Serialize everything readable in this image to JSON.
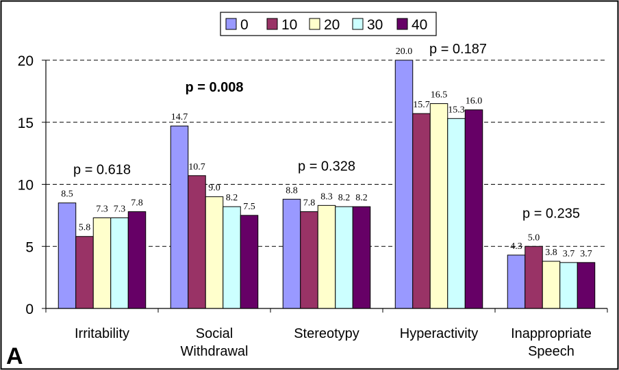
{
  "chart_data": {
    "type": "bar",
    "categories": [
      [
        "Irritability"
      ],
      [
        "Social",
        "Withdrawal"
      ],
      [
        "Stereotypy"
      ],
      [
        "Hyperactivity"
      ],
      [
        "Inappropriate",
        "Speech"
      ]
    ],
    "series": [
      {
        "name": "0",
        "color": "#9999ff",
        "values": [
          8.5,
          14.7,
          8.8,
          20.0,
          4.3
        ]
      },
      {
        "name": "10",
        "color": "#993366",
        "values": [
          5.8,
          10.7,
          7.8,
          15.7,
          5.0
        ]
      },
      {
        "name": "20",
        "color": "#ffffcc",
        "values": [
          7.3,
          9.0,
          8.3,
          16.5,
          3.8
        ]
      },
      {
        "name": "30",
        "color": "#ccffff",
        "values": [
          7.3,
          8.2,
          8.2,
          15.3,
          3.7
        ]
      },
      {
        "name": "40",
        "color": "#660066",
        "values": [
          7.8,
          7.5,
          8.2,
          16.0,
          3.7
        ]
      }
    ],
    "data_labels": [
      [
        "8.5",
        "14.7",
        "8.8",
        "20.0",
        "4.3"
      ],
      [
        "5.8",
        "10.7",
        "7.8",
        "15.7",
        "5.0"
      ],
      [
        "7.3",
        "9.0",
        "8.3",
        "16.5",
        "3.8"
      ],
      [
        "7.3",
        "8.2",
        "8.2",
        "15.3",
        "3.7"
      ],
      [
        "7.8",
        "7.5",
        "8.2",
        "16.0",
        "3.7"
      ]
    ],
    "annotations": [
      {
        "category_index": 0,
        "text": "p = 0.618",
        "bold": false
      },
      {
        "category_index": 1,
        "text": "p = 0.008",
        "bold": true
      },
      {
        "category_index": 2,
        "text": "p = 0.328",
        "bold": false
      },
      {
        "category_index": 3,
        "text": "p = 0.187",
        "bold": false
      },
      {
        "category_index": 4,
        "text": "p = 0.235",
        "bold": false
      }
    ],
    "ylim": [
      0,
      20
    ],
    "yticks": [
      0,
      5,
      10,
      15,
      20
    ],
    "ytick_labels": [
      "0",
      "5",
      "10",
      "15",
      "20"
    ],
    "grid": "horizontal dashed",
    "legend_position": "top-center",
    "panel_label": "A",
    "title": "",
    "xlabel": "",
    "ylabel": ""
  }
}
